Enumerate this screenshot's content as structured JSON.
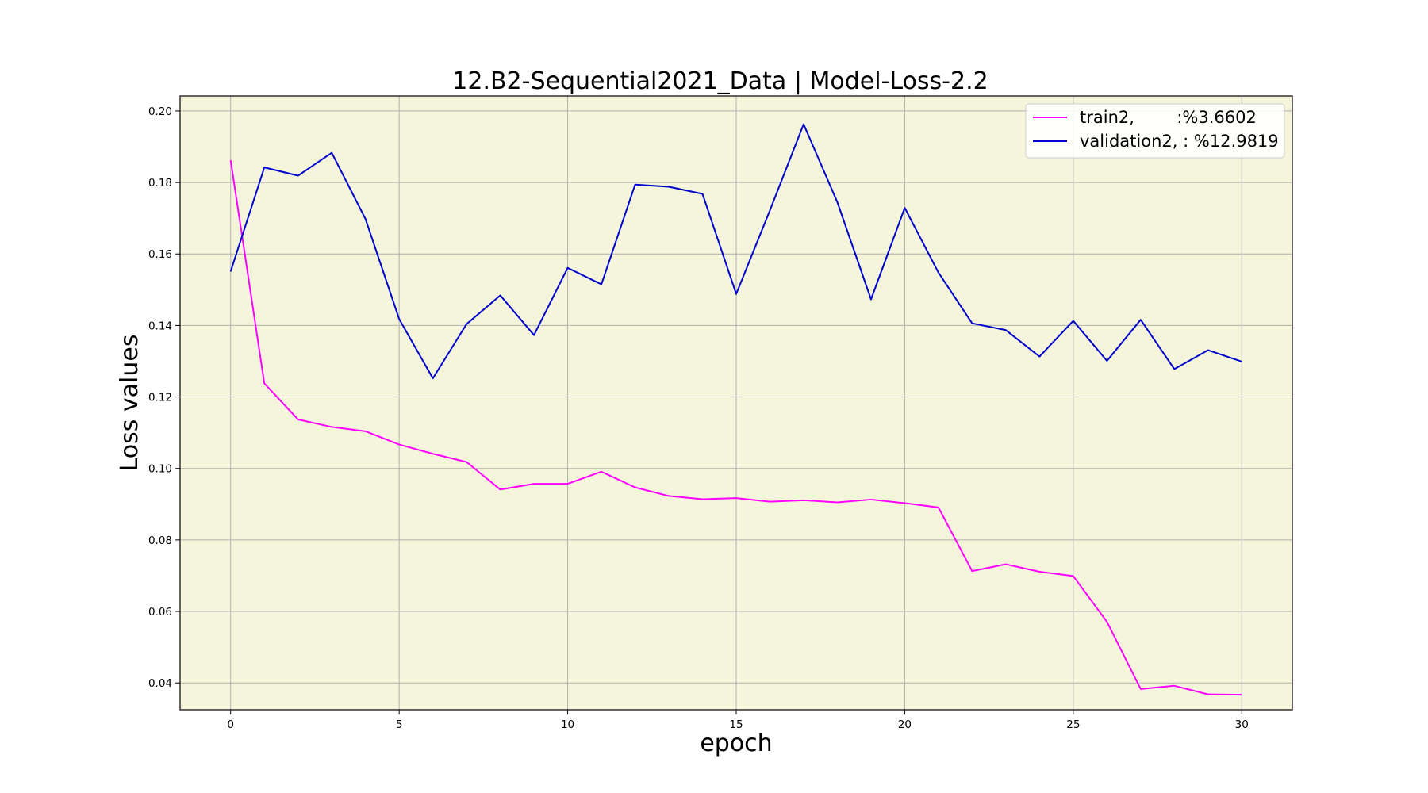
{
  "chart_data": {
    "type": "line",
    "title": "12.B2-Sequential2021_Data | Model-Loss-2.2",
    "xlabel": "epoch",
    "ylabel": "Loss values",
    "x": [
      0,
      1,
      2,
      3,
      4,
      5,
      6,
      7,
      8,
      9,
      10,
      11,
      12,
      13,
      14,
      15,
      16,
      17,
      18,
      19,
      20,
      21,
      22,
      23,
      24,
      25,
      26,
      27,
      28,
      29,
      30
    ],
    "xlim": [
      -1.5,
      31.5
    ],
    "ylim": [
      0.0325,
      0.2042
    ],
    "xticks": [
      "0",
      "5",
      "10",
      "15",
      "20",
      "25",
      "30"
    ],
    "yticks": [
      "0.04",
      "0.06",
      "0.08",
      "0.10",
      "0.12",
      "0.14",
      "0.16",
      "0.18",
      "0.20"
    ],
    "grid": true,
    "background": "#f5f5dc",
    "legend_position": "top-right",
    "series": [
      {
        "name": "train2,        :%3.6602",
        "color": "#ff00ff",
        "values": [
          0.1862,
          0.1238,
          0.1137,
          0.1116,
          0.1104,
          0.1067,
          0.1041,
          0.1018,
          0.0941,
          0.0957,
          0.0957,
          0.0991,
          0.0947,
          0.0923,
          0.0914,
          0.0917,
          0.0907,
          0.0911,
          0.0905,
          0.0913,
          0.0903,
          0.0891,
          0.0713,
          0.0732,
          0.0711,
          0.0699,
          0.0571,
          0.0383,
          0.0392,
          0.0368,
          0.0367
        ]
      },
      {
        "name": "validation2, : %12.9819",
        "color": "#0000cd",
        "values": [
          0.1551,
          0.1842,
          0.1819,
          0.1883,
          0.1698,
          0.1418,
          0.1252,
          0.1404,
          0.1484,
          0.1373,
          0.1561,
          0.1515,
          0.1794,
          0.1788,
          0.1768,
          0.1488,
          0.1722,
          0.1963,
          0.1745,
          0.1473,
          0.1729,
          0.1548,
          0.1406,
          0.1387,
          0.1313,
          0.1413,
          0.1301,
          0.1416,
          0.1278,
          0.1331,
          0.1299
        ]
      }
    ]
  }
}
